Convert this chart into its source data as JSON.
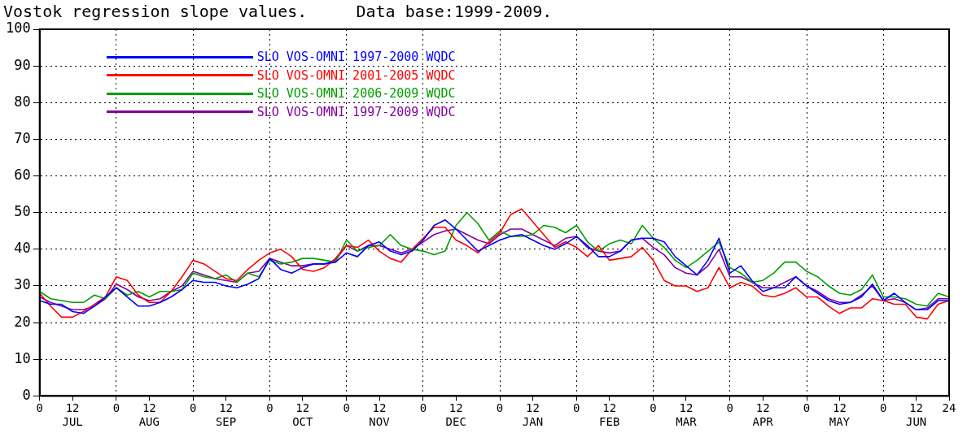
{
  "chart_data": {
    "type": "line",
    "title": "Vostok regression slope values.     Data base:1999-2009.",
    "categories": [
      "0",
      null,
      null,
      "12\nJUL",
      null,
      null,
      null,
      "0",
      null,
      null,
      "12\nAUG",
      null,
      null,
      null,
      "0",
      null,
      null,
      "12\nSEP",
      null,
      null,
      null,
      "0",
      null,
      null,
      "12\nOCT",
      null,
      null,
      null,
      "0",
      null,
      null,
      "12\nNOV",
      null,
      null,
      null,
      "0",
      null,
      null,
      "12\nDEC",
      null,
      null,
      null,
      "0",
      null,
      null,
      "12\nJAN",
      null,
      null,
      null,
      "0",
      null,
      null,
      "12\nFEB",
      null,
      null,
      null,
      "0",
      null,
      null,
      "12\nMAR",
      null,
      null,
      null,
      "0",
      null,
      null,
      "12\nAPR",
      null,
      null,
      null,
      "0",
      null,
      null,
      "12\nMAY",
      null,
      null,
      null,
      "0",
      null,
      null,
      "12\nJUN",
      null,
      null,
      "24"
    ],
    "series": [
      {
        "name": "SLO VOS-OMNI 1997-2000 WQDC",
        "color": "#0000ff",
        "values": [
          26,
          25,
          25,
          23,
          22.5,
          24.5,
          27,
          29.5,
          27,
          24.5,
          24.5,
          25.5,
          27,
          29,
          31.5,
          31,
          31,
          30,
          29.5,
          30.5,
          32,
          37.5,
          34.5,
          33.5,
          35,
          36,
          36,
          36.5,
          39,
          38,
          41,
          42,
          39.5,
          38.5,
          39.5,
          42.5,
          46.5,
          48,
          45.5,
          42.5,
          39.5,
          41,
          42.5,
          43.5,
          44,
          42.5,
          41,
          40,
          41.5,
          43.5,
          41,
          38,
          38,
          39.5,
          42.5,
          43,
          43,
          42,
          38,
          35.5,
          33,
          37,
          43,
          33.5,
          35.5,
          31.5,
          28.5,
          29.5,
          29.5,
          32.5,
          30,
          28,
          26,
          25,
          25.5,
          27,
          30.5,
          26,
          28,
          25.5,
          23.5,
          23.5,
          26,
          26
        ]
      },
      {
        "name": "SLO VOS-OMNI 2001-2005 WQDC",
        "color": "#ff0000",
        "values": [
          28,
          24.5,
          21.5,
          21.5,
          23,
          25,
          27,
          32.5,
          31.5,
          27.5,
          25.5,
          25.5,
          28.5,
          32.5,
          37,
          36,
          34,
          32,
          31.5,
          34.5,
          37,
          39,
          40,
          38,
          34.5,
          34,
          35,
          37.5,
          41,
          40.5,
          42.5,
          39.5,
          37.5,
          36.5,
          40,
          43,
          46,
          46,
          42.5,
          41,
          39,
          42,
          44.5,
          49.5,
          51,
          47.5,
          44,
          40.5,
          42,
          40.5,
          38,
          41,
          37,
          37.5,
          38,
          40.5,
          37,
          31.5,
          30,
          30,
          28.5,
          29.5,
          35,
          29.5,
          31,
          30,
          27.5,
          27,
          28,
          29.5,
          27,
          27,
          24.5,
          22.5,
          24,
          24,
          26.5,
          26,
          25,
          25,
          21.5,
          21,
          25,
          26
        ]
      },
      {
        "name": "SLO VOS-OMNI 2006-2009 WQDC",
        "color": "#00a000",
        "values": [
          28.5,
          26.5,
          26,
          25.5,
          25.5,
          27.5,
          26.5,
          29.5,
          27.5,
          28.5,
          27,
          28.5,
          28.5,
          29,
          33.5,
          32.5,
          32,
          33,
          31,
          33.5,
          32.5,
          37,
          36,
          36.5,
          37.5,
          37.5,
          37,
          36.5,
          42.5,
          39.5,
          40.5,
          41,
          44,
          41,
          40,
          39.5,
          38.5,
          39.5,
          46.5,
          50,
          47,
          42.5,
          45,
          43.5,
          43.5,
          44,
          46.5,
          46,
          44.5,
          46.5,
          42,
          39.5,
          41.5,
          42.5,
          41.5,
          46.5,
          43,
          40.5,
          37,
          35,
          37,
          39.5,
          42,
          35,
          33.5,
          31,
          31.5,
          33.5,
          36.5,
          36.5,
          34,
          32.5,
          30,
          28,
          27.5,
          29,
          33,
          27,
          27,
          26.5,
          25,
          24.5,
          28,
          27
        ]
      },
      {
        "name": "SLO VOS-OMNI 1997-2009 WQDC",
        "color": "#8000a0",
        "values": [
          27,
          25.5,
          24.5,
          23.5,
          23.5,
          24.5,
          26.5,
          30.5,
          29,
          27,
          26,
          26.5,
          28.5,
          30,
          34,
          33,
          32,
          31.5,
          31,
          33.5,
          34,
          37.5,
          36.5,
          35.5,
          35.5,
          36,
          36,
          37,
          41,
          39.5,
          41,
          41,
          40,
          39,
          40,
          42,
          44,
          45,
          45.5,
          44,
          42.5,
          41.5,
          44,
          45.5,
          45.5,
          44,
          42.5,
          41,
          43,
          43.5,
          40.5,
          39.5,
          39,
          39.5,
          42.5,
          43,
          40.5,
          38.5,
          35,
          33.5,
          33,
          35.5,
          40,
          32.5,
          32.5,
          31,
          29.5,
          29.5,
          31,
          32.5,
          30,
          28.5,
          26.5,
          25.5,
          25.5,
          27.5,
          30,
          26,
          26.5,
          25.5,
          23.5,
          24,
          26.5,
          26.5
        ]
      }
    ],
    "ylim": [
      0,
      100
    ],
    "yticks": [
      0,
      10,
      20,
      30,
      40,
      50,
      60,
      70,
      80,
      90,
      100
    ],
    "grid": true,
    "legend": "top left",
    "line_style": "solid"
  }
}
